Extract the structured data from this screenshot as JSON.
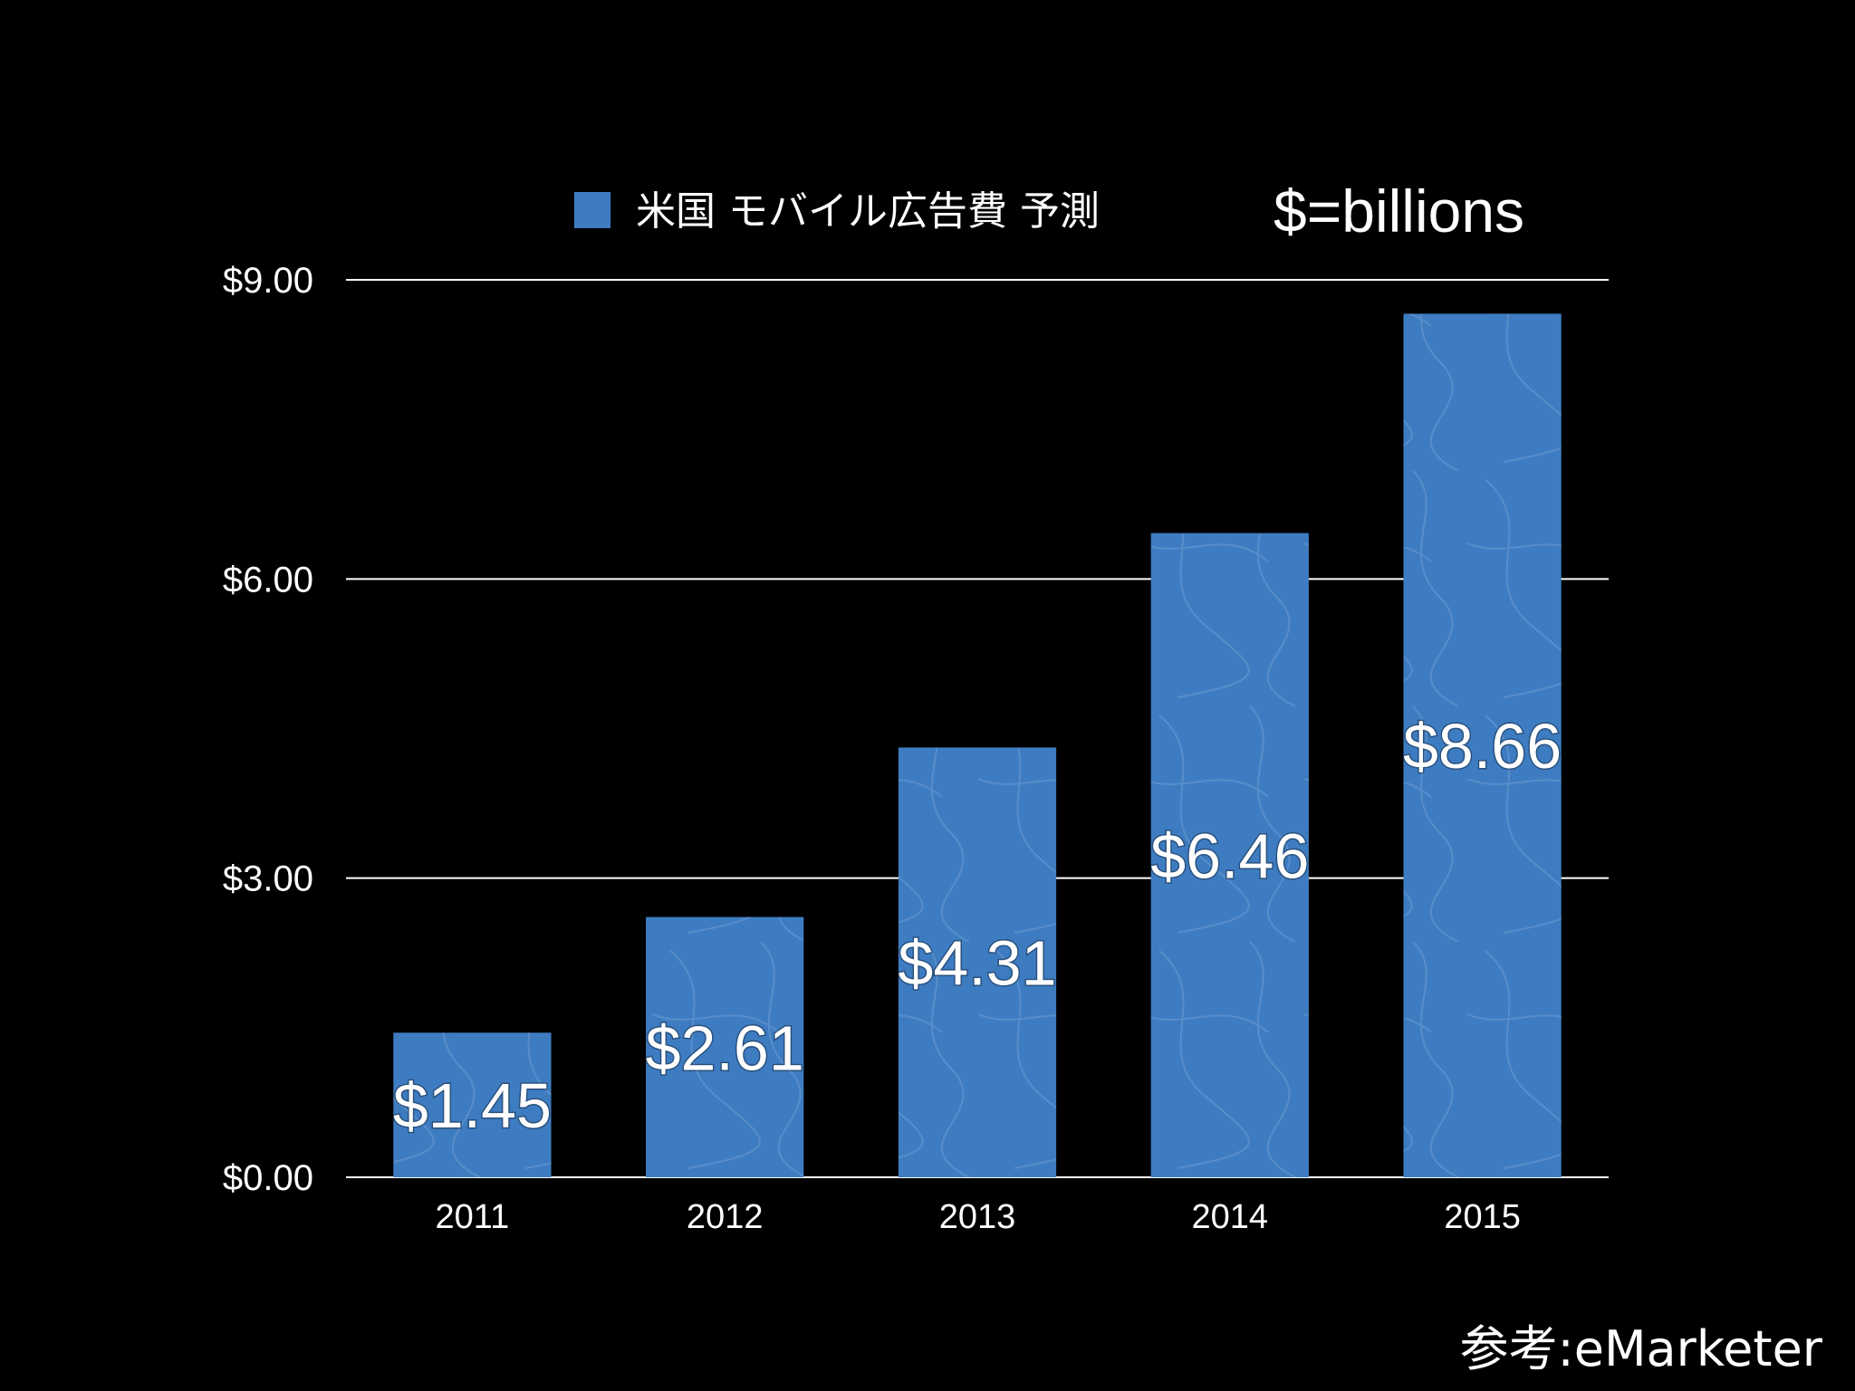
{
  "chart_data": {
    "type": "bar",
    "categories": [
      "2011",
      "2012",
      "2013",
      "2014",
      "2015"
    ],
    "series": [
      {
        "name": "米国 モバイル広告費 予測",
        "values": [
          1.45,
          2.61,
          4.31,
          6.46,
          8.66
        ],
        "data_labels": [
          "$1.45",
          "$2.61",
          "$4.31",
          "$6.46",
          "$8.66"
        ],
        "color": "#3E7CC1"
      }
    ],
    "ylim": [
      0,
      9
    ],
    "yticks": [
      0,
      3,
      6,
      9
    ],
    "ytick_labels": [
      "$0.00",
      "$3.00",
      "$6.00",
      "$9.00"
    ],
    "grid": true,
    "legend_position": "top",
    "unit_note": "$=billions",
    "source": "参考:eMarketer",
    "background": "#000000"
  }
}
